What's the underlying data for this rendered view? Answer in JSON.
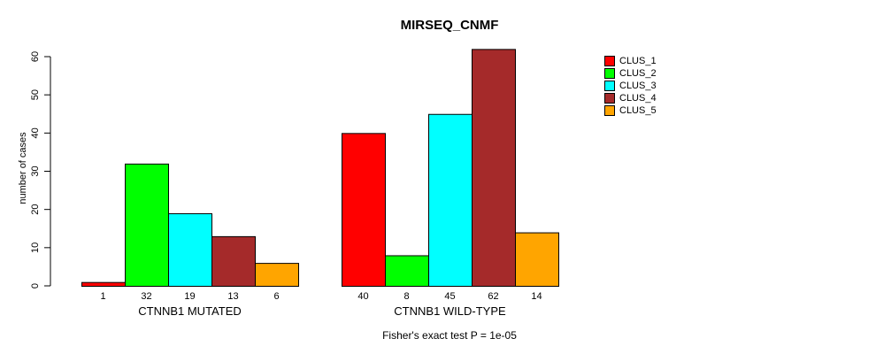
{
  "chart_data": {
    "type": "bar",
    "title": "MIRSEQ_CNMF",
    "xlabel": "",
    "ylabel": "number of cases",
    "categories": [
      "CTNNB1 MUTATED",
      "CTNNB1 WILD-TYPE"
    ],
    "series": [
      {
        "name": "CLUS_1",
        "color": "#FF0000",
        "values": [
          1,
          40
        ]
      },
      {
        "name": "CLUS_2",
        "color": "#00FF00",
        "values": [
          32,
          8
        ]
      },
      {
        "name": "CLUS_3",
        "color": "#00FFFF",
        "values": [
          19,
          45
        ]
      },
      {
        "name": "CLUS_4",
        "color": "#A52A2A",
        "values": [
          13,
          62
        ]
      },
      {
        "name": "CLUS_5",
        "color": "#FFA500",
        "values": [
          6,
          14
        ]
      }
    ],
    "bar_value_labels": [
      [
        "1",
        "32",
        "19",
        "13",
        "6"
      ],
      [
        "40",
        "8",
        "45",
        "62",
        "14"
      ]
    ],
    "yticks": [
      0,
      10,
      20,
      30,
      40,
      50,
      60
    ],
    "ylim": [
      0,
      62
    ],
    "grid": false,
    "legend_position": "right",
    "annotation": "Fisher's exact test P = 1e-05"
  },
  "colors": {
    "axis": "#000000",
    "bar_border": "#000000",
    "background": "#FFFFFF"
  }
}
